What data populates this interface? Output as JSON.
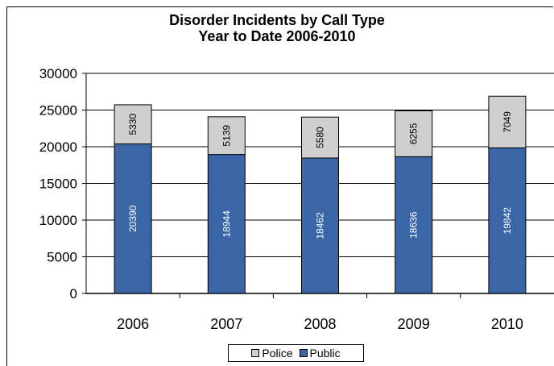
{
  "chart_data": {
    "type": "bar",
    "stacked": true,
    "title_lines": [
      "Disorder Incidents by Call Type",
      "Year to Date 2006-2010"
    ],
    "categories": [
      "2006",
      "2007",
      "2008",
      "2009",
      "2010"
    ],
    "series": [
      {
        "name": "Public",
        "color": "#3a66a7",
        "values": [
          20390,
          18944,
          18462,
          18636,
          19842
        ]
      },
      {
        "name": "Police",
        "color": "#cfcfcf",
        "values": [
          5330,
          5139,
          5580,
          6255,
          7049
        ]
      }
    ],
    "ylim": [
      0,
      30000
    ],
    "yticks": [
      "0",
      "5000",
      "10000",
      "15000",
      "20000",
      "25000",
      "30000"
    ],
    "grid": true,
    "legend": "bottom-center",
    "legend_order": [
      "Police",
      "Public"
    ],
    "data_labels": "inside-rotated"
  }
}
